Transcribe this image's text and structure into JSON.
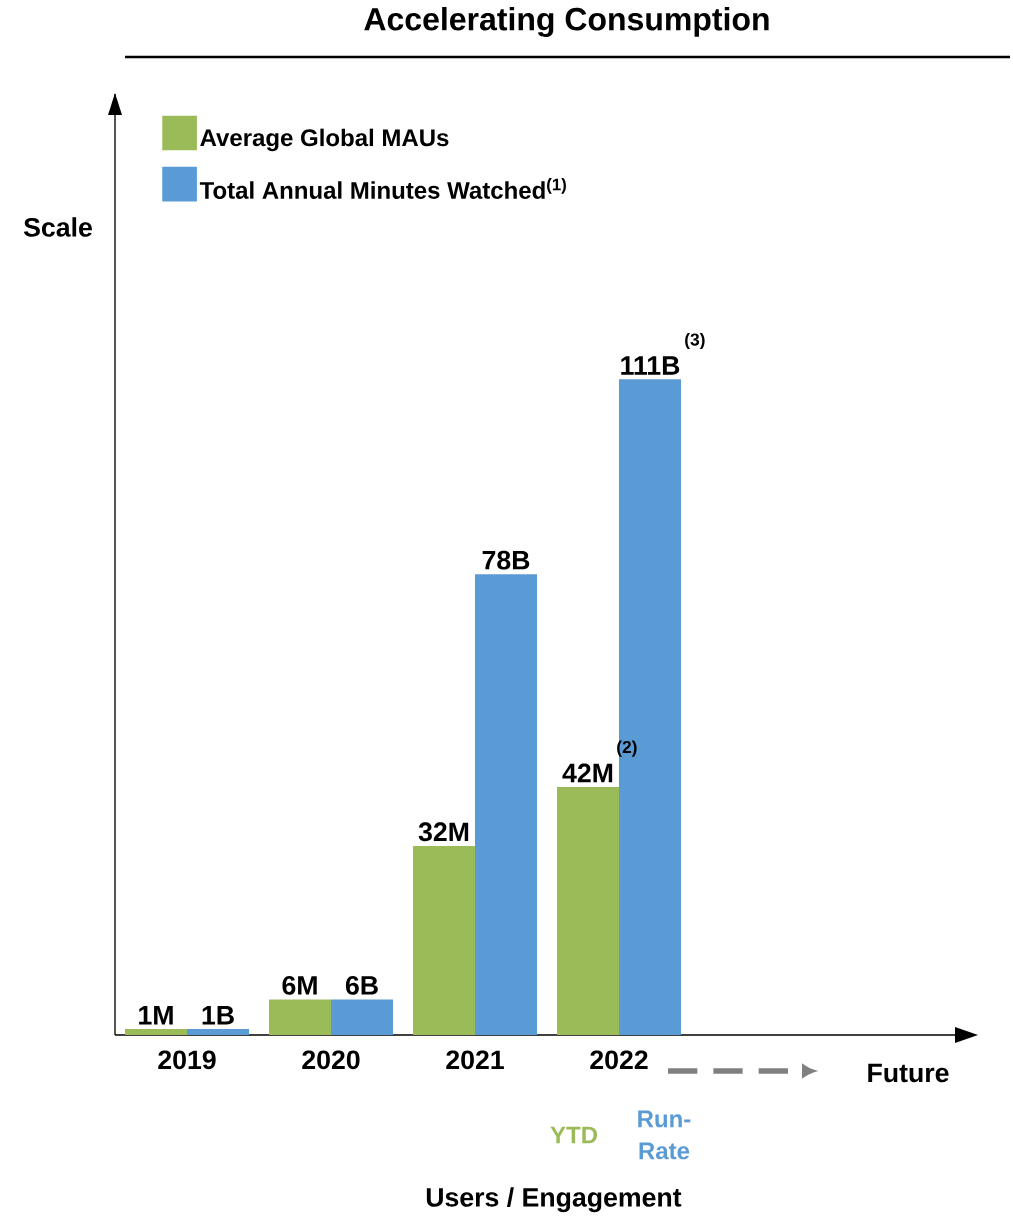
{
  "chart_data": {
    "type": "bar",
    "title": "Accelerating Consumption",
    "xlabel": "Users / Engagement",
    "categories": [
      "2019",
      "2020",
      "2021",
      "2022"
    ],
    "series": [
      {
        "name": "Average Global MAUs",
        "color": "#9bbb59",
        "values": [
          1,
          6,
          32,
          42
        ],
        "value_labels": [
          "1M",
          "6M",
          "32M",
          "42M"
        ]
      },
      {
        "name": "Total Annual Minutes Watched$^{(1)}$",
        "color": "#5b9bd5",
        "values": [
          1,
          6,
          78,
          111
        ],
        "value_labels": [
          "1B",
          "6B",
          "78B",
          "111B"
        ]
      }
    ],
    "legend": "top left",
    "grid": false,
    "annotations": [
      "Future",
      "YTD",
      "Run-Rate",
      "(2)",
      "(3)",
      "Scale"
    ]
  }
}
